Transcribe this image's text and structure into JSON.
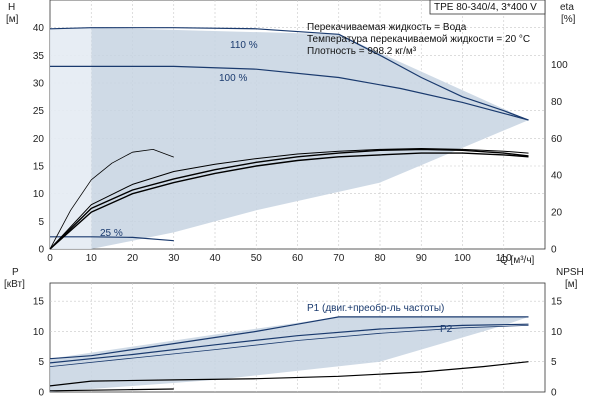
{
  "model_box": "TPE 80-340/4, 3*400 V",
  "notes": [
    "Перекачиваемая жидкость = Вода",
    "Температура перекачиваемой жидкости = 20 °C",
    "Плотность = 998.2 кг/м³"
  ],
  "chart_data": [
    {
      "type": "line",
      "name": "head-chart",
      "xlabel": "Q [м³/ч]",
      "ylabel": "H\n[м]",
      "ylabel_right": "eta\n[%]",
      "xlim": [
        0,
        120
      ],
      "ylim": [
        0,
        45
      ],
      "ylim_right": [
        0,
        135
      ],
      "x_ticks": [
        0,
        10,
        20,
        30,
        40,
        50,
        60,
        70,
        80,
        90,
        100,
        110
      ],
      "y_ticks": [
        0,
        5,
        10,
        15,
        20,
        25,
        30,
        35,
        40
      ],
      "y_ticks_right": [
        0,
        20,
        40,
        60,
        80,
        100
      ],
      "grid": true,
      "operating_range_area": [
        [
          10,
          0
        ],
        [
          10,
          40
        ],
        [
          70,
          38.8
        ],
        [
          116,
          23.3
        ],
        [
          80,
          12
        ],
        [
          50,
          7
        ],
        [
          30,
          3
        ],
        [
          10,
          0
        ]
      ],
      "series": [
        {
          "name": "110 %",
          "axis": "left",
          "color": "#1a3a6e",
          "width": 1.2,
          "points": [
            [
              0,
              39.8
            ],
            [
              10,
              40
            ],
            [
              30,
              40
            ],
            [
              50,
              39.8
            ],
            [
              70,
              38.8
            ],
            [
              80,
              35
            ],
            [
              90,
              31
            ],
            [
              100,
              27.5
            ],
            [
              110,
              25
            ],
            [
              116,
              23.3
            ]
          ]
        },
        {
          "name": "100 %",
          "axis": "left",
          "color": "#1a3a6e",
          "width": 1.2,
          "points": [
            [
              0,
              33
            ],
            [
              10,
              33
            ],
            [
              30,
              33
            ],
            [
              50,
              32.5
            ],
            [
              70,
              31
            ],
            [
              85,
              29
            ],
            [
              100,
              26.5
            ],
            [
              110,
              24.5
            ],
            [
              116,
              23.3
            ]
          ]
        },
        {
          "name": "25 %",
          "axis": "left",
          "color": "#1a3a6e",
          "width": 1.2,
          "points": [
            [
              0,
              2.2
            ],
            [
              10,
              2.2
            ],
            [
              20,
              2.1
            ],
            [
              30,
              1.5
            ]
          ]
        },
        {
          "name": "",
          "axis": "left",
          "color": "#000000",
          "width": 0.8,
          "points": [
            [
              0,
              0
            ],
            [
              5,
              7
            ],
            [
              10,
              12.5
            ],
            [
              15,
              15.5
            ],
            [
              20,
              17.5
            ],
            [
              25,
              18
            ],
            [
              30,
              16.6
            ]
          ]
        },
        {
          "name": "",
          "axis": "right",
          "color": "#000000",
          "width": 1.4,
          "points": [
            [
              0,
              0
            ],
            [
              10,
              20
            ],
            [
              20,
              30
            ],
            [
              30,
              36
            ],
            [
              40,
              41
            ],
            [
              50,
              45
            ],
            [
              60,
              48
            ],
            [
              70,
              50
            ],
            [
              80,
              51
            ],
            [
              90,
              52
            ],
            [
              100,
              52
            ],
            [
              110,
              51
            ],
            [
              116,
              50
            ]
          ]
        },
        {
          "name": "",
          "axis": "right",
          "color": "#000000",
          "width": 1.4,
          "points": [
            [
              0,
              0
            ],
            [
              10,
              22
            ],
            [
              20,
              32
            ],
            [
              30,
              38
            ],
            [
              40,
              43
            ],
            [
              50,
              47
            ],
            [
              60,
              50
            ],
            [
              70,
              52
            ],
            [
              80,
              53.5
            ],
            [
              90,
              54
            ],
            [
              100,
              53.5
            ],
            [
              110,
              52
            ],
            [
              116,
              50.5
            ]
          ]
        },
        {
          "name": "",
          "axis": "right",
          "color": "#000000",
          "width": 1.0,
          "points": [
            [
              0,
              0
            ],
            [
              10,
              24
            ],
            [
              20,
              35
            ],
            [
              30,
              42
            ],
            [
              40,
              46
            ],
            [
              50,
              49
            ],
            [
              60,
              51.5
            ],
            [
              70,
              53
            ],
            [
              80,
              54
            ],
            [
              90,
              54.5
            ],
            [
              100,
              54
            ],
            [
              110,
              53
            ],
            [
              116,
              52
            ]
          ]
        }
      ]
    },
    {
      "type": "line",
      "name": "power-chart",
      "ylabel": "P\n[кВт]",
      "ylabel_right": "NPSH\n[м]",
      "xlim": [
        0,
        120
      ],
      "ylim": [
        0,
        18
      ],
      "ylim_right": [
        0,
        18
      ],
      "y_ticks": [
        0,
        5,
        10,
        15
      ],
      "y_ticks_right": [
        0,
        5,
        10,
        15
      ],
      "grid": true,
      "operating_range_area": [
        [
          0,
          5.5
        ],
        [
          20,
          7.5
        ],
        [
          40,
          9.5
        ],
        [
          70,
          12.4
        ],
        [
          116,
          12.4
        ],
        [
          110,
          11
        ],
        [
          80,
          5
        ],
        [
          40,
          2
        ],
        [
          10,
          0.5
        ],
        [
          0,
          0
        ]
      ],
      "series": [
        {
          "name": "P1 (двиг.+преобр-ль частоты)",
          "axis": "left",
          "color": "#1a3a6e",
          "width": 1.2,
          "points": [
            [
              0,
              5.5
            ],
            [
              10,
              6
            ],
            [
              20,
              7
            ],
            [
              30,
              8
            ],
            [
              40,
              9
            ],
            [
              50,
              10
            ],
            [
              60,
              11.2
            ],
            [
              70,
              12.4
            ],
            [
              116,
              12.4
            ]
          ]
        },
        {
          "name": "P2",
          "axis": "left",
          "color": "#1a3a6e",
          "width": 1.2,
          "points": [
            [
              0,
              4.8
            ],
            [
              20,
              6.2
            ],
            [
              40,
              7.8
            ],
            [
              60,
              9.3
            ],
            [
              80,
              10.4
            ],
            [
              100,
              11
            ],
            [
              116,
              11.2
            ]
          ]
        },
        {
          "name": "",
          "axis": "left",
          "color": "#1a3a6e",
          "width": 0.8,
          "points": [
            [
              0,
              4.2
            ],
            [
              20,
              5.6
            ],
            [
              40,
              7
            ],
            [
              60,
              8.5
            ],
            [
              80,
              9.7
            ],
            [
              100,
              10.6
            ],
            [
              116,
              11
            ]
          ]
        },
        {
          "name": "",
          "axis": "left",
          "color": "#000000",
          "width": 1.2,
          "points": [
            [
              0,
              1
            ],
            [
              10,
              1.8
            ],
            [
              30,
              2
            ],
            [
              50,
              2.2
            ],
            [
              70,
              2.6
            ],
            [
              90,
              3.3
            ],
            [
              105,
              4.2
            ],
            [
              116,
              5
            ]
          ]
        },
        {
          "name": "",
          "axis": "left",
          "color": "#000000",
          "width": 1.2,
          "points": [
            [
              0,
              0.2
            ],
            [
              10,
              0.3
            ],
            [
              20,
              0.4
            ],
            [
              30,
              0.5
            ]
          ]
        }
      ]
    }
  ]
}
